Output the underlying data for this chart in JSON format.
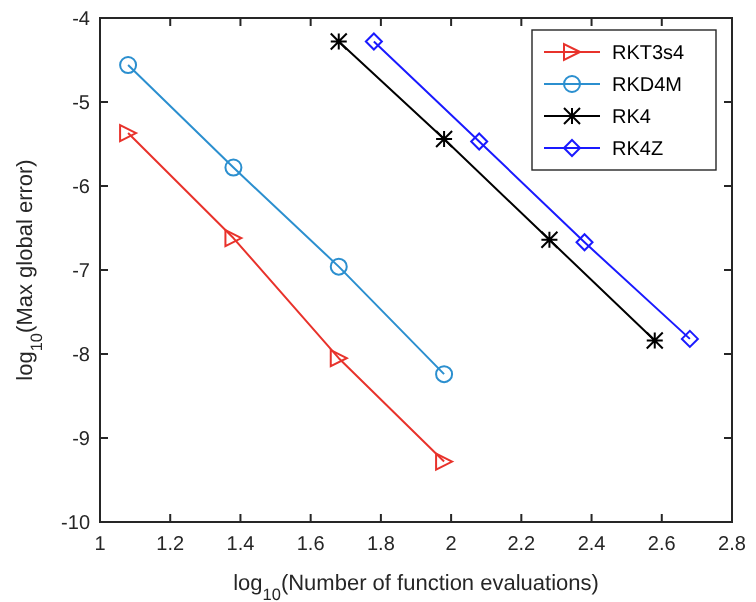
{
  "chart_data": {
    "type": "line",
    "xlabel": "log$_{10}$(Number of function evaluations)",
    "ylabel": "log$_{10}$(Max global error)",
    "xlim": [
      1,
      2.8
    ],
    "xticks": [
      1,
      1.2,
      1.4,
      1.6,
      1.8,
      2,
      2.2,
      2.4,
      2.6,
      2.8
    ],
    "ylim": [
      -10,
      -4
    ],
    "yticks": [
      -10,
      -9,
      -8,
      -7,
      -6,
      -5,
      -4
    ],
    "grid": false,
    "legend": "top right",
    "line_style": "solid",
    "series": [
      {
        "name": "RKT3s4",
        "color": "#e8322b",
        "marker": "triangle",
        "x": [
          1.08,
          1.38,
          1.68,
          1.98
        ],
        "values": [
          -5.37,
          -6.62,
          -8.05,
          -9.28
        ]
      },
      {
        "name": "RKD4M",
        "color": "#2b8fcf",
        "marker": "circle",
        "x": [
          1.08,
          1.38,
          1.68,
          1.98
        ],
        "values": [
          -4.56,
          -5.78,
          -6.96,
          -8.24
        ]
      },
      {
        "name": "RK4",
        "color": "#000000",
        "marker": "cross",
        "x": [
          1.68,
          1.98,
          2.28,
          2.58
        ],
        "values": [
          -4.28,
          -5.44,
          -6.64,
          -7.84
        ]
      },
      {
        "name": "RK4Z",
        "color": "#1a1aff",
        "marker": "diamond",
        "x": [
          1.78,
          2.08,
          2.38,
          2.68
        ],
        "values": [
          -4.28,
          -5.47,
          -6.67,
          -7.82
        ]
      }
    ]
  }
}
